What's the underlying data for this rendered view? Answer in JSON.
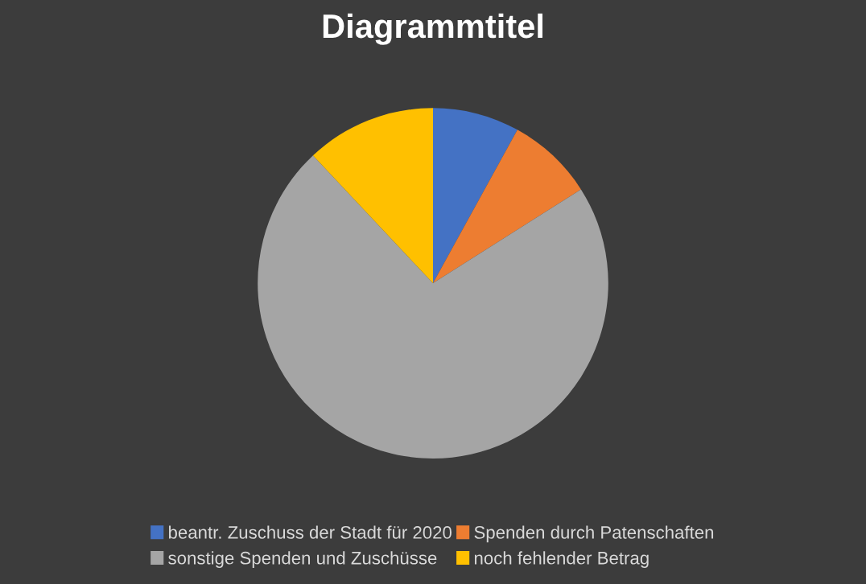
{
  "chart_data": {
    "type": "pie",
    "title": "Diagrammtitel",
    "categories": [
      "beantr. Zuschuss der Stadt für 2020",
      "Spenden durch Patenschaften",
      "sonstige Spenden und Zuschüsse",
      "noch fehlender Betrag"
    ],
    "values": [
      8,
      8,
      72,
      12
    ],
    "colors": [
      "#4472c4",
      "#ed7d31",
      "#a5a5a5",
      "#ffc000"
    ],
    "legend": "bottom"
  }
}
